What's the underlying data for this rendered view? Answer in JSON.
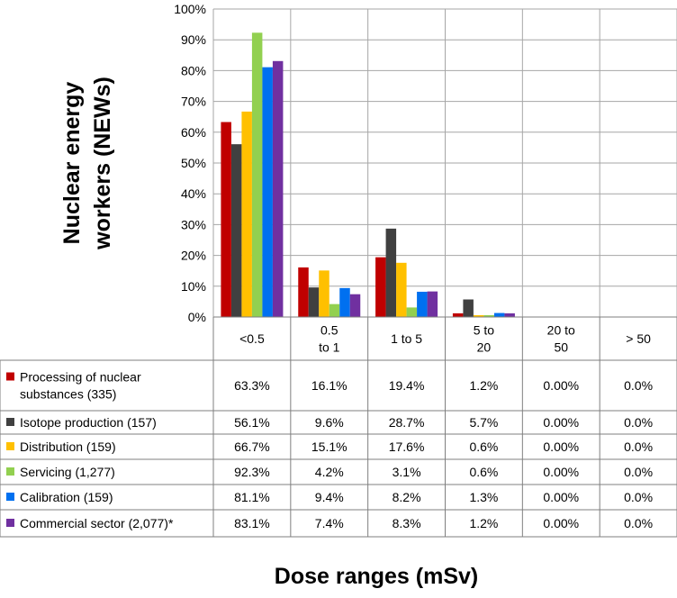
{
  "chart_data": {
    "type": "bar",
    "ylabel": "Nuclear energy workers (NEWs)",
    "xlabel": "Dose ranges (mSv)",
    "ylim": [
      0,
      100
    ],
    "y_ticks": [
      "0%",
      "10%",
      "20%",
      "30%",
      "40%",
      "50%",
      "60%",
      "70%",
      "80%",
      "90%",
      "100%"
    ],
    "grid": true,
    "legend": "data-table",
    "categories": [
      [
        "<0.5"
      ],
      [
        "0.5",
        "to 1"
      ],
      [
        "1 to 5"
      ],
      [
        "5 to",
        "20"
      ],
      [
        "20 to",
        "50"
      ],
      [
        "> 50"
      ]
    ],
    "series": [
      {
        "name_lines": [
          "Processing of nuclear",
          "substances (335)"
        ],
        "color": "#c00000",
        "values": [
          63.3,
          16.1,
          19.4,
          1.2,
          0.0,
          0.0
        ],
        "labels": [
          "63.3%",
          "16.1%",
          "19.4%",
          "1.2%",
          "0.00%",
          "0.0%"
        ]
      },
      {
        "name_lines": [
          "Isotope production (157)"
        ],
        "color": "#404040",
        "values": [
          56.1,
          9.6,
          28.7,
          5.7,
          0.0,
          0.0
        ],
        "labels": [
          "56.1%",
          "9.6%",
          "28.7%",
          "5.7%",
          "0.00%",
          "0.0%"
        ]
      },
      {
        "name_lines": [
          "Distribution (159)"
        ],
        "color": "#ffc000",
        "values": [
          66.7,
          15.1,
          17.6,
          0.6,
          0.0,
          0.0
        ],
        "labels": [
          "66.7%",
          "15.1%",
          "17.6%",
          "0.6%",
          "0.00%",
          "0.0%"
        ]
      },
      {
        "name_lines": [
          "Servicing (1,277)"
        ],
        "color": "#92d050",
        "values": [
          92.3,
          4.2,
          3.1,
          0.6,
          0.0,
          0.0
        ],
        "labels": [
          "92.3%",
          "4.2%",
          "3.1%",
          "0.6%",
          "0.00%",
          "0.0%"
        ]
      },
      {
        "name_lines": [
          "Calibration (159)"
        ],
        "color": "#0070f0",
        "values": [
          81.1,
          9.4,
          8.2,
          1.3,
          0.0,
          0.0
        ],
        "labels": [
          "81.1%",
          "9.4%",
          "8.2%",
          "1.3%",
          "0.00%",
          "0.0%"
        ]
      },
      {
        "name_lines": [
          "Commercial sector (2,077)*"
        ],
        "color": "#7030a0",
        "values": [
          83.1,
          7.4,
          8.3,
          1.2,
          0.0,
          0.0
        ],
        "labels": [
          "83.1%",
          "7.4%",
          "8.3%",
          "1.2%",
          "0.00%",
          "0.0%"
        ]
      }
    ]
  }
}
